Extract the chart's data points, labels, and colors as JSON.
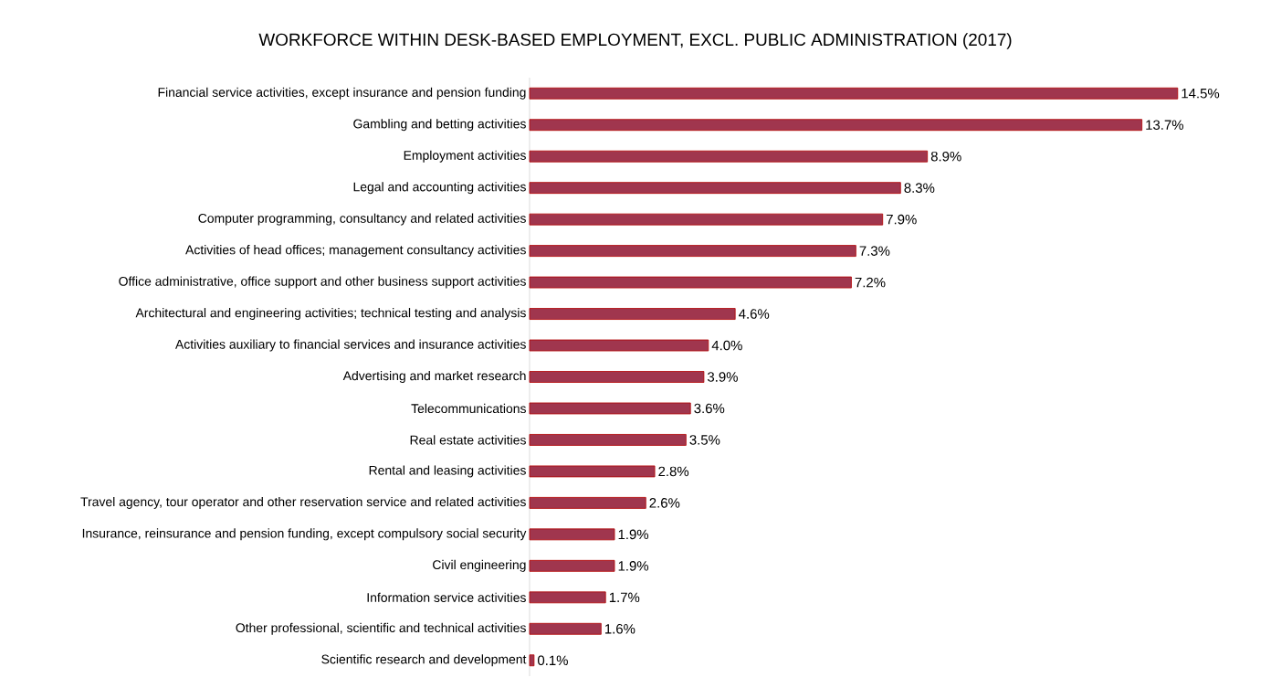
{
  "chart_data": {
    "type": "bar",
    "orientation": "horizontal",
    "title": "WORKFORCE WITHIN DESK-BASED EMPLOYMENT, EXCL. PUBLIC ADMINISTRATION (2017)",
    "categories": [
      "Financial service activities, except insurance and pension funding",
      "Gambling and betting activities",
      "Employment activities",
      "Legal and accounting activities",
      "Computer programming, consultancy and related activities",
      "Activities of head offices; management consultancy activities",
      "Office administrative, office support and other business support activities",
      "Architectural and engineering activities; technical testing and analysis",
      "Activities  auxiliary to financial services and insurance activities",
      "Advertising and market research",
      "Telecommunications",
      "Real estate activities",
      "Rental and leasing activities",
      "Travel agency, tour operator and other reservation service and related activities",
      "Insurance, reinsurance and pension funding, except compulsory social security",
      "Civil engineering",
      "Information service activities",
      "Other professional, scientific and technical activities",
      "Scientific research and development"
    ],
    "values": [
      14.5,
      13.7,
      8.9,
      8.3,
      7.9,
      7.3,
      7.2,
      4.6,
      4.0,
      3.9,
      3.6,
      3.5,
      2.8,
      2.6,
      1.9,
      1.9,
      1.7,
      1.6,
      0.1
    ],
    "value_labels": [
      "14.5%",
      "13.7%",
      "8.9%",
      "8.3%",
      "7.9%",
      "7.3%",
      "7.2%",
      "4.6%",
      "4.0%",
      "3.9%",
      "3.6%",
      "3.5%",
      "2.8%",
      "2.6%",
      "1.9%",
      "1.9%",
      "1.7%",
      "1.6%",
      "0.1%"
    ],
    "color": "#a0364e"
  }
}
